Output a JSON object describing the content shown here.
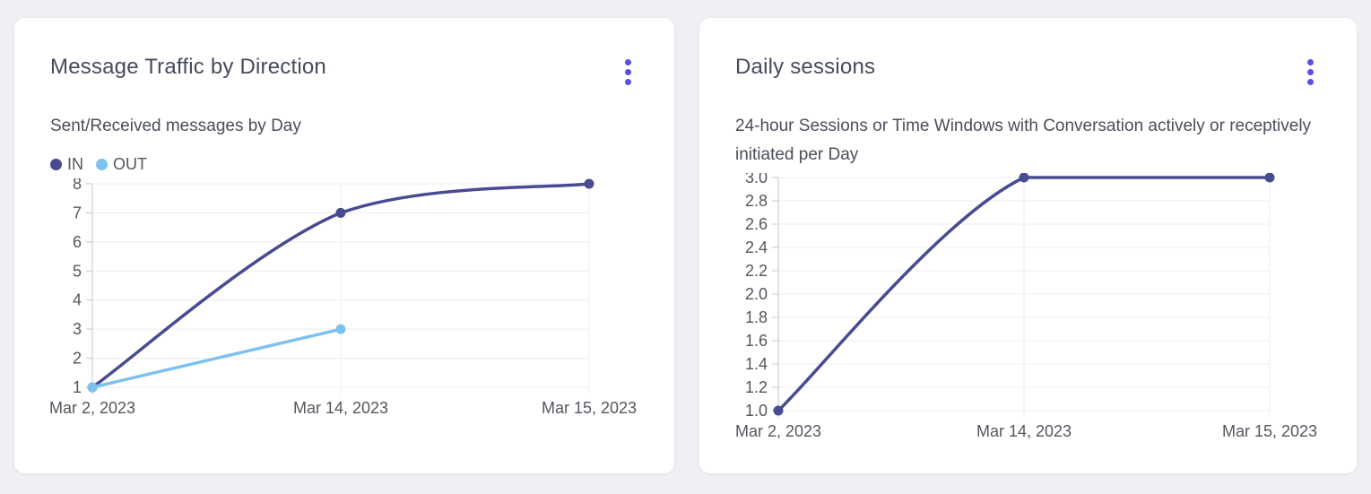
{
  "colors": {
    "page_bg": "#F0F0F4",
    "card_bg": "#FFFFFF",
    "accent": "#5A50E8",
    "title": "#464A5E",
    "subtitle": "#4A4E5A",
    "tick_label": "#55565F",
    "grid": "#ECECF0",
    "axis": "#C6C7CF",
    "series_in": "#474B92",
    "series_out": "#7DC1EF"
  },
  "cards": [
    {
      "title": "Message Traffic by Direction",
      "subtitle": "Sent/Received messages by Day",
      "menu_icon": "kebab-menu-icon",
      "legend": [
        {
          "label": "IN",
          "color": "#474B92"
        },
        {
          "label": "OUT",
          "color": "#7DC1EF"
        }
      ]
    },
    {
      "title": "Daily sessions",
      "subtitle": "24-hour Sessions or Time Windows with Conversation actively or receptively initiated per Day",
      "menu_icon": "kebab-menu-icon"
    }
  ],
  "chart_data": [
    {
      "type": "line",
      "name": "message-traffic",
      "title": "Message Traffic by Direction",
      "subtitle": "Sent/Received messages by Day",
      "categories": [
        "Mar 2, 2023",
        "Mar 14, 2023",
        "Mar 15, 2023"
      ],
      "series": [
        {
          "name": "IN",
          "color": "#474B92",
          "values": [
            1,
            7,
            8
          ]
        },
        {
          "name": "OUT",
          "color": "#7DC1EF",
          "values": [
            1,
            3,
            null
          ]
        }
      ],
      "xlabel": "",
      "ylabel": "",
      "ylim": [
        1,
        8
      ],
      "ytick_values": [
        8,
        7,
        6,
        5,
        4,
        3,
        2,
        1
      ],
      "ytick_labels": [
        "8",
        "7",
        "6",
        "5",
        "4",
        "3",
        "2",
        "1"
      ],
      "grid": true,
      "smooth": true,
      "legend_position": "top-left"
    },
    {
      "type": "line",
      "name": "daily-sessions",
      "title": "Daily sessions",
      "subtitle": "24-hour Sessions or Time Windows with Conversation actively or receptively initiated per Day",
      "categories": [
        "Mar 2, 2023",
        "Mar 14, 2023",
        "Mar 15, 2023"
      ],
      "series": [
        {
          "name": "Daily sessions",
          "color": "#474B92",
          "values": [
            1.0,
            3.0,
            3.0
          ]
        }
      ],
      "xlabel": "",
      "ylabel": "",
      "ylim": [
        1.0,
        3.0
      ],
      "ytick_values": [
        3.0,
        2.8,
        2.6,
        2.4,
        2.2,
        2.0,
        1.8,
        1.6,
        1.4,
        1.2,
        1.0
      ],
      "ytick_labels": [
        "3.0",
        "2.8",
        "2.6",
        "2.4",
        "2.2",
        "2.0",
        "1.8",
        "1.6",
        "1.4",
        "1.2",
        "1.0"
      ],
      "grid": true,
      "smooth": true,
      "legend_position": "none"
    }
  ]
}
